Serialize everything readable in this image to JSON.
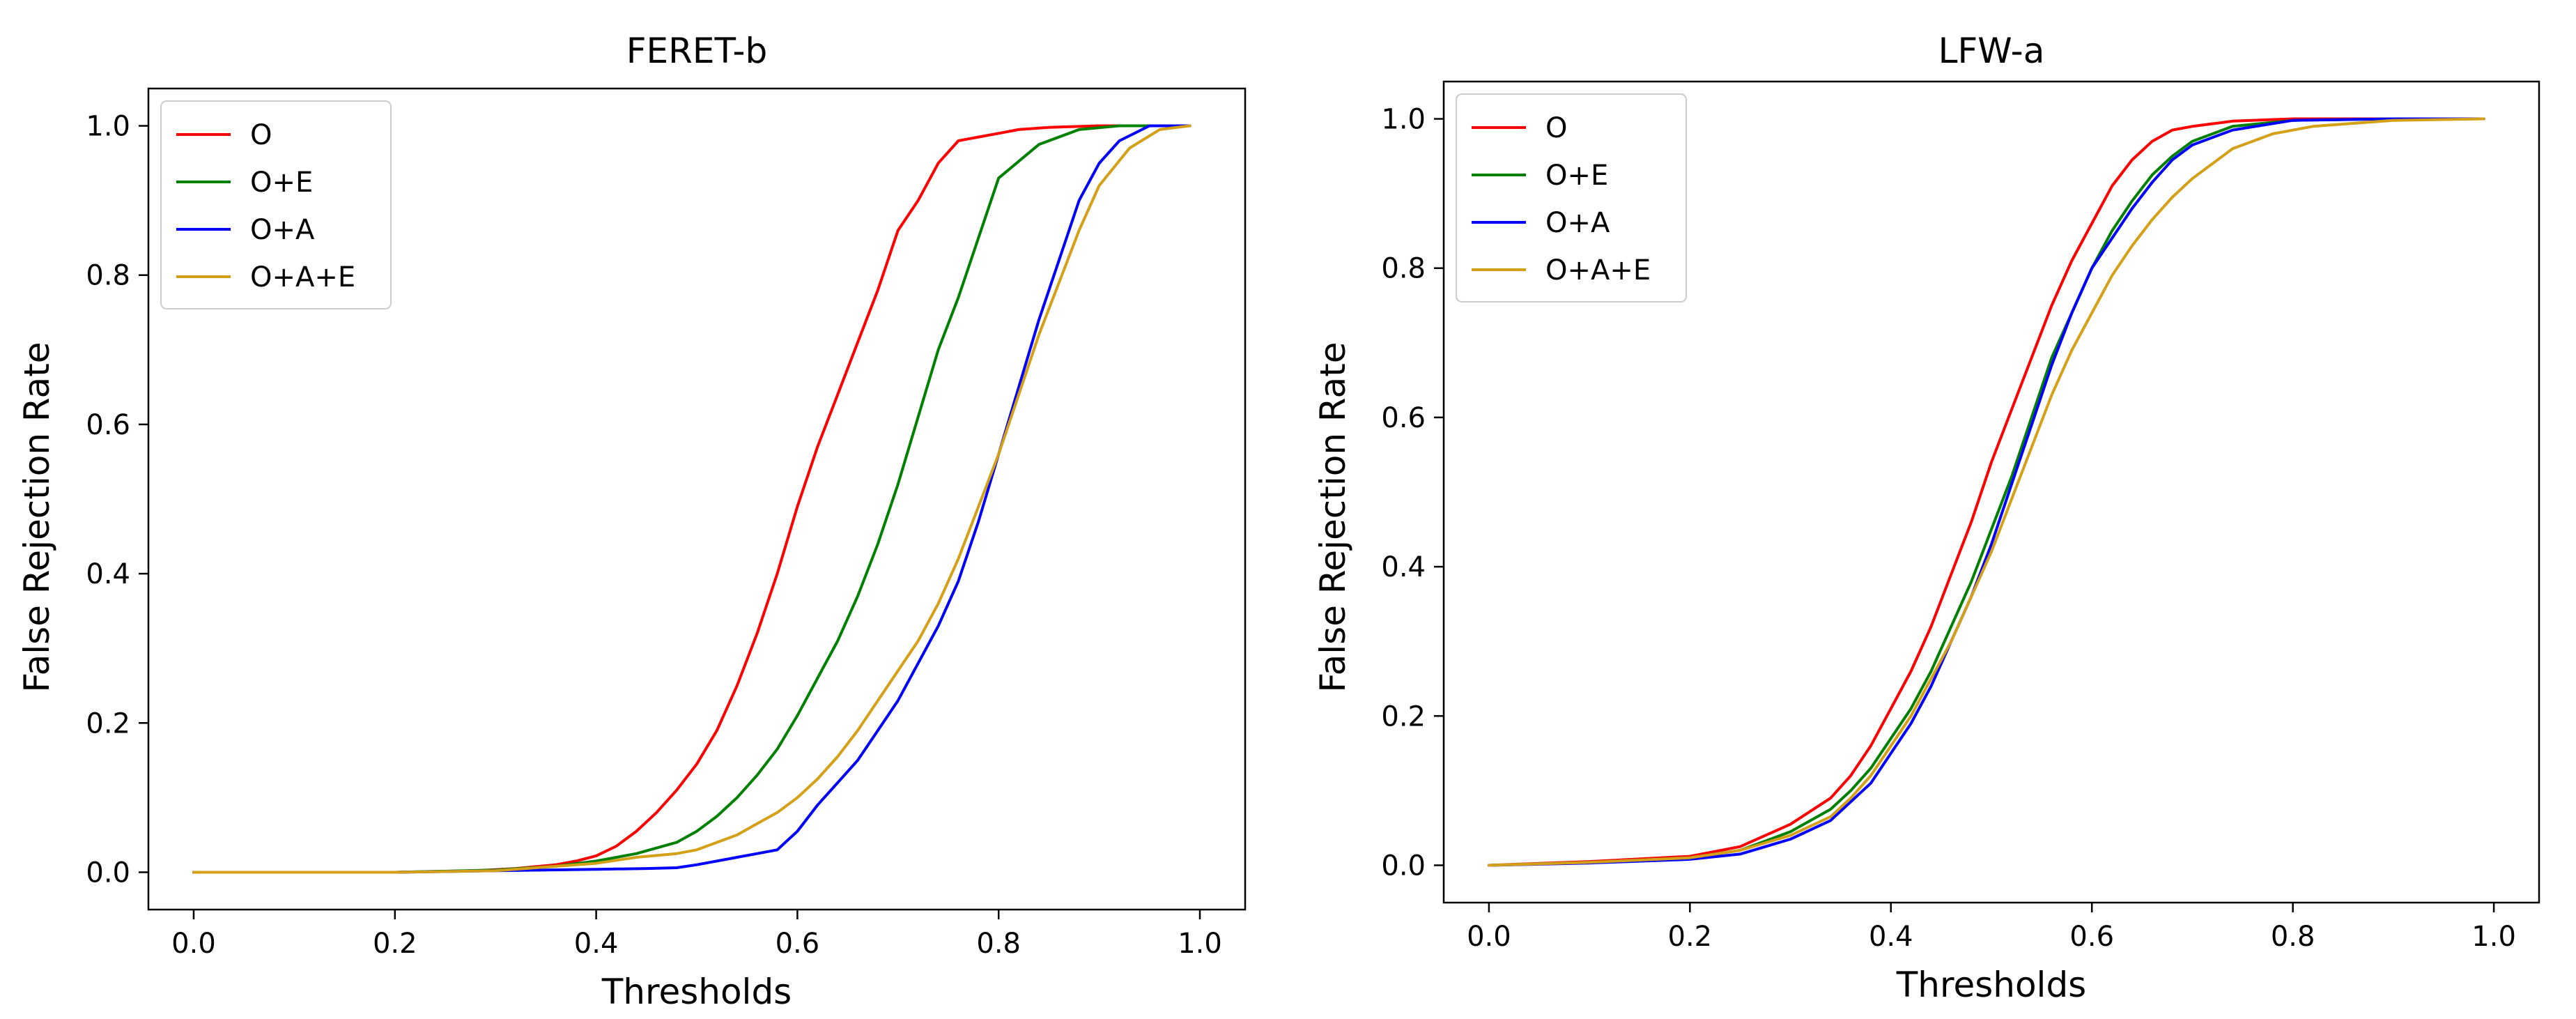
{
  "chart_data": [
    {
      "type": "line",
      "title": "FERET-b",
      "xlabel": "Thresholds",
      "ylabel": "False Rejection Rate",
      "xlim": [
        -0.045,
        1.045
      ],
      "ylim": [
        -0.05,
        1.05
      ],
      "xticks": [
        0.0,
        0.2,
        0.4,
        0.6,
        0.8,
        1.0
      ],
      "xtick_labels": [
        "0.0",
        "0.2",
        "0.4",
        "0.6",
        "0.8",
        "1.0"
      ],
      "yticks": [
        0.0,
        0.2,
        0.4,
        0.6,
        0.8,
        1.0
      ],
      "ytick_labels": [
        "0.0",
        "0.2",
        "0.4",
        "0.6",
        "0.8",
        "1.0"
      ],
      "grid": false,
      "legend_position": "top-left",
      "series": [
        {
          "name": "O",
          "color": "#ff0000",
          "x": [
            0.0,
            0.2,
            0.28,
            0.32,
            0.36,
            0.38,
            0.4,
            0.42,
            0.44,
            0.46,
            0.48,
            0.5,
            0.52,
            0.54,
            0.56,
            0.58,
            0.6,
            0.62,
            0.64,
            0.66,
            0.68,
            0.7,
            0.72,
            0.74,
            0.76,
            0.78,
            0.8,
            0.82,
            0.85,
            0.9,
            0.95,
            0.99
          ],
          "y": [
            0.0,
            0.0,
            0.002,
            0.005,
            0.01,
            0.015,
            0.022,
            0.035,
            0.055,
            0.08,
            0.11,
            0.145,
            0.19,
            0.25,
            0.32,
            0.4,
            0.49,
            0.57,
            0.64,
            0.71,
            0.78,
            0.86,
            0.9,
            0.95,
            0.98,
            0.985,
            0.99,
            0.995,
            0.998,
            1.0,
            1.0,
            1.0
          ]
        },
        {
          "name": "O+E",
          "color": "#008000",
          "x": [
            0.0,
            0.2,
            0.3,
            0.36,
            0.4,
            0.44,
            0.48,
            0.5,
            0.52,
            0.54,
            0.56,
            0.58,
            0.6,
            0.62,
            0.64,
            0.66,
            0.68,
            0.7,
            0.72,
            0.74,
            0.76,
            0.78,
            0.8,
            0.84,
            0.88,
            0.92,
            0.99
          ],
          "y": [
            0.0,
            0.0,
            0.003,
            0.008,
            0.015,
            0.025,
            0.04,
            0.055,
            0.075,
            0.1,
            0.13,
            0.165,
            0.21,
            0.26,
            0.31,
            0.37,
            0.44,
            0.52,
            0.61,
            0.7,
            0.77,
            0.85,
            0.93,
            0.975,
            0.995,
            1.0,
            1.0
          ]
        },
        {
          "name": "O+A",
          "color": "#0000ff",
          "x": [
            0.0,
            0.2,
            0.3,
            0.35,
            0.4,
            0.45,
            0.48,
            0.5,
            0.52,
            0.54,
            0.56,
            0.58,
            0.6,
            0.62,
            0.64,
            0.66,
            0.68,
            0.7,
            0.72,
            0.74,
            0.76,
            0.78,
            0.8,
            0.82,
            0.84,
            0.86,
            0.88,
            0.9,
            0.92,
            0.95,
            0.99
          ],
          "y": [
            0.0,
            0.0,
            0.002,
            0.003,
            0.004,
            0.005,
            0.006,
            0.01,
            0.015,
            0.02,
            0.025,
            0.03,
            0.055,
            0.09,
            0.12,
            0.15,
            0.19,
            0.23,
            0.28,
            0.33,
            0.39,
            0.47,
            0.56,
            0.65,
            0.74,
            0.82,
            0.9,
            0.95,
            0.98,
            1.0,
            1.0
          ]
        },
        {
          "name": "O+A+E",
          "color": "#d4a017",
          "x": [
            0.0,
            0.2,
            0.3,
            0.36,
            0.4,
            0.44,
            0.48,
            0.5,
            0.52,
            0.54,
            0.56,
            0.58,
            0.6,
            0.62,
            0.64,
            0.66,
            0.68,
            0.7,
            0.72,
            0.74,
            0.76,
            0.78,
            0.8,
            0.82,
            0.84,
            0.86,
            0.88,
            0.9,
            0.93,
            0.96,
            0.99
          ],
          "y": [
            0.0,
            0.0,
            0.002,
            0.008,
            0.012,
            0.02,
            0.025,
            0.03,
            0.04,
            0.05,
            0.065,
            0.08,
            0.1,
            0.125,
            0.155,
            0.19,
            0.23,
            0.27,
            0.31,
            0.36,
            0.42,
            0.49,
            0.56,
            0.64,
            0.72,
            0.79,
            0.86,
            0.92,
            0.97,
            0.995,
            1.0
          ]
        }
      ]
    },
    {
      "type": "line",
      "title": "LFW-a",
      "xlabel": "Thresholds",
      "ylabel": "False Rejection Rate",
      "xlim": [
        -0.045,
        1.045
      ],
      "ylim": [
        -0.05,
        1.05
      ],
      "xticks": [
        0.0,
        0.2,
        0.4,
        0.6,
        0.8,
        1.0
      ],
      "xtick_labels": [
        "0.0",
        "0.2",
        "0.4",
        "0.6",
        "0.8",
        "1.0"
      ],
      "yticks": [
        0.0,
        0.2,
        0.4,
        0.6,
        0.8,
        1.0
      ],
      "ytick_labels": [
        "0.0",
        "0.2",
        "0.4",
        "0.6",
        "0.8",
        "1.0"
      ],
      "grid": false,
      "legend_position": "top-left",
      "series": [
        {
          "name": "O",
          "color": "#ff0000",
          "x": [
            0.0,
            0.1,
            0.2,
            0.25,
            0.3,
            0.34,
            0.36,
            0.38,
            0.4,
            0.42,
            0.44,
            0.46,
            0.48,
            0.5,
            0.52,
            0.54,
            0.56,
            0.58,
            0.6,
            0.62,
            0.64,
            0.66,
            0.68,
            0.7,
            0.74,
            0.8,
            0.9,
            0.99
          ],
          "y": [
            0.0,
            0.005,
            0.012,
            0.025,
            0.055,
            0.09,
            0.12,
            0.16,
            0.21,
            0.26,
            0.32,
            0.39,
            0.46,
            0.54,
            0.61,
            0.68,
            0.75,
            0.81,
            0.86,
            0.91,
            0.945,
            0.97,
            0.985,
            0.99,
            0.997,
            1.0,
            1.0,
            1.0
          ]
        },
        {
          "name": "O+E",
          "color": "#008000",
          "x": [
            0.0,
            0.1,
            0.2,
            0.25,
            0.3,
            0.34,
            0.36,
            0.38,
            0.4,
            0.42,
            0.44,
            0.46,
            0.48,
            0.5,
            0.52,
            0.54,
            0.56,
            0.58,
            0.6,
            0.62,
            0.64,
            0.66,
            0.68,
            0.7,
            0.74,
            0.8,
            0.9,
            0.99
          ],
          "y": [
            0.0,
            0.004,
            0.01,
            0.02,
            0.045,
            0.075,
            0.1,
            0.13,
            0.17,
            0.21,
            0.26,
            0.32,
            0.38,
            0.45,
            0.52,
            0.6,
            0.68,
            0.74,
            0.8,
            0.85,
            0.89,
            0.925,
            0.95,
            0.97,
            0.99,
            0.998,
            1.0,
            1.0
          ]
        },
        {
          "name": "O+A",
          "color": "#0000ff",
          "x": [
            0.0,
            0.1,
            0.2,
            0.25,
            0.3,
            0.34,
            0.36,
            0.38,
            0.4,
            0.42,
            0.44,
            0.46,
            0.48,
            0.5,
            0.52,
            0.54,
            0.56,
            0.58,
            0.6,
            0.62,
            0.64,
            0.66,
            0.68,
            0.7,
            0.74,
            0.8,
            0.9,
            0.99
          ],
          "y": [
            0.0,
            0.003,
            0.008,
            0.015,
            0.035,
            0.06,
            0.085,
            0.11,
            0.15,
            0.19,
            0.24,
            0.3,
            0.36,
            0.43,
            0.51,
            0.59,
            0.67,
            0.74,
            0.8,
            0.84,
            0.88,
            0.915,
            0.945,
            0.965,
            0.985,
            0.998,
            1.0,
            1.0
          ]
        },
        {
          "name": "O+A+E",
          "color": "#d4a017",
          "x": [
            0.0,
            0.1,
            0.2,
            0.25,
            0.3,
            0.34,
            0.36,
            0.38,
            0.4,
            0.42,
            0.44,
            0.46,
            0.48,
            0.5,
            0.52,
            0.54,
            0.56,
            0.58,
            0.6,
            0.62,
            0.64,
            0.66,
            0.68,
            0.7,
            0.74,
            0.78,
            0.82,
            0.9,
            0.99
          ],
          "y": [
            0.0,
            0.004,
            0.01,
            0.02,
            0.04,
            0.065,
            0.09,
            0.12,
            0.16,
            0.2,
            0.25,
            0.3,
            0.36,
            0.42,
            0.49,
            0.56,
            0.63,
            0.69,
            0.74,
            0.79,
            0.83,
            0.865,
            0.895,
            0.92,
            0.96,
            0.98,
            0.99,
            0.998,
            1.0
          ]
        }
      ]
    }
  ]
}
